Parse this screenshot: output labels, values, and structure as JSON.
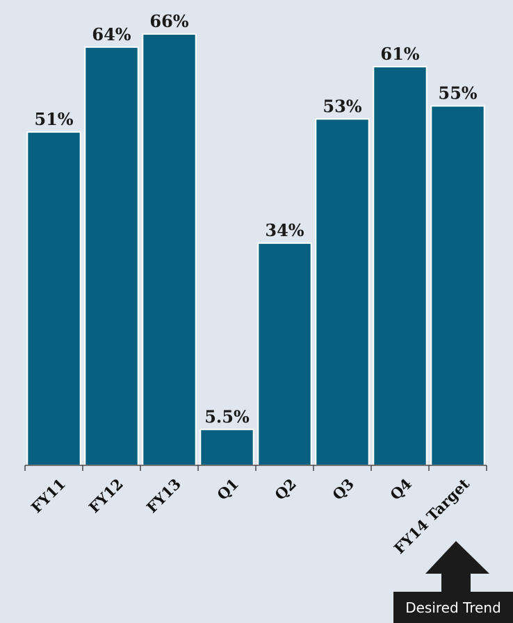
{
  "chart_data": {
    "type": "bar",
    "categories": [
      "FY11",
      "FY12",
      "FY13",
      "Q1",
      "Q2",
      "Q3",
      "Q4",
      "FY14 Target"
    ],
    "values": [
      51,
      64,
      66,
      5.5,
      34,
      53,
      61,
      55
    ],
    "value_labels": [
      "51%",
      "64%",
      "66%",
      "5.5%",
      "34%",
      "53%",
      "61%",
      "55%"
    ],
    "ylim": [
      0,
      70
    ],
    "grid": false,
    "bar_color": "#07607f"
  },
  "annotation": {
    "label": "Desired Trend",
    "icon": "up-arrow-icon"
  }
}
